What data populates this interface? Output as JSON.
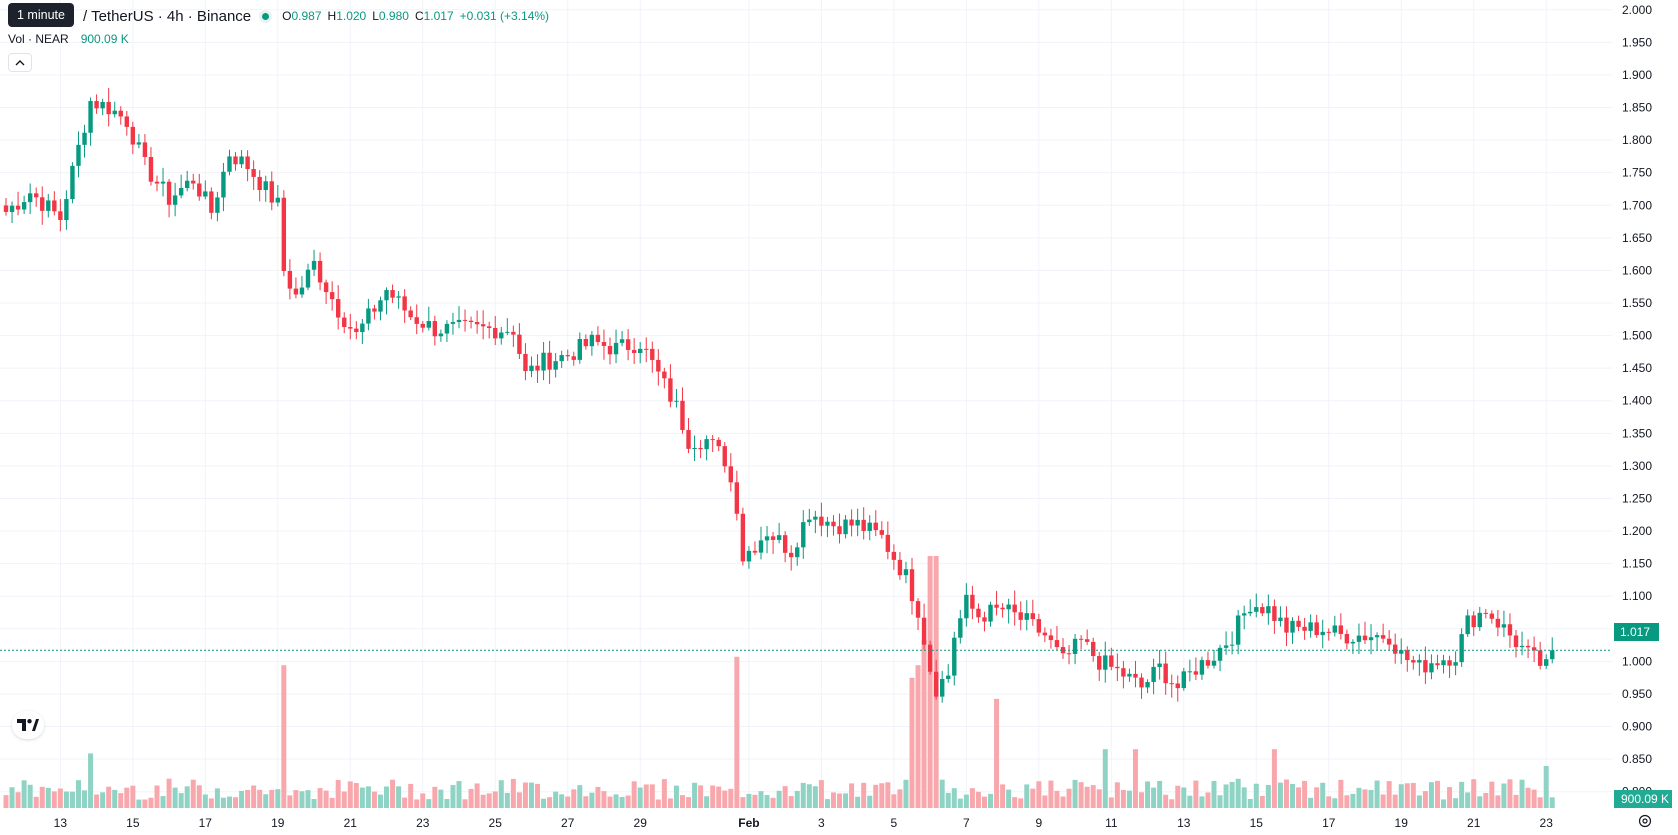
{
  "header": {
    "symbol": "/ TetherUS · 4h · Binance",
    "tooltip": "1 minute",
    "ohlc": {
      "o_label": "O",
      "o_value": "0.987",
      "h_label": "H",
      "h_value": "1.020",
      "l_label": "L",
      "l_value": "0.980",
      "c_label": "C",
      "c_value": "1.017",
      "change": "+0.031 (+3.14%)"
    },
    "volume_label": "Vol · NEAR",
    "volume_value": "900.09 K",
    "collapse_icon": "chevron-up-icon"
  },
  "price_tag": "1.017",
  "volume_tag": "900.09 K",
  "colors": {
    "up": "#089981",
    "down": "#F23645",
    "up_vol": "#8fd3c5",
    "down_vol": "#f8a8ad",
    "grid": "#f0f3fa"
  },
  "chart_data": {
    "type": "candlestick",
    "y_axis": {
      "ticks": [
        "2.000",
        "1.950",
        "1.900",
        "1.850",
        "1.800",
        "1.750",
        "1.700",
        "1.650",
        "1.600",
        "1.550",
        "1.500",
        "1.450",
        "1.400",
        "1.350",
        "1.300",
        "1.250",
        "1.200",
        "1.150",
        "1.100",
        "1.050",
        "1.000",
        "0.950",
        "0.900",
        "0.850",
        "0.800"
      ],
      "range": [
        0.775,
        2.015
      ],
      "side": "right"
    },
    "x_axis": {
      "ticks": [
        {
          "label": "13",
          "i": 9
        },
        {
          "label": "15",
          "i": 21
        },
        {
          "label": "17",
          "i": 33
        },
        {
          "label": "19",
          "i": 45
        },
        {
          "label": "21",
          "i": 57
        },
        {
          "label": "23",
          "i": 69
        },
        {
          "label": "25",
          "i": 81
        },
        {
          "label": "27",
          "i": 93
        },
        {
          "label": "29",
          "i": 105
        },
        {
          "label": "Feb",
          "i": 123,
          "bold": true
        },
        {
          "label": "3",
          "i": 135
        },
        {
          "label": "5",
          "i": 147
        },
        {
          "label": "7",
          "i": 159
        },
        {
          "label": "9",
          "i": 171
        },
        {
          "label": "11",
          "i": 183
        },
        {
          "label": "13",
          "i": 195
        },
        {
          "label": "15",
          "i": 207
        },
        {
          "label": "17",
          "i": 219
        },
        {
          "label": "19",
          "i": 231
        },
        {
          "label": "21",
          "i": 243
        },
        {
          "label": "23",
          "i": 255
        }
      ]
    },
    "grid": true,
    "last_price": 1.017,
    "keypoints": [
      [
        0,
        1.69
      ],
      [
        4,
        1.72
      ],
      [
        9,
        1.68
      ],
      [
        14,
        1.86
      ],
      [
        17,
        1.85
      ],
      [
        20,
        1.83
      ],
      [
        23,
        1.76
      ],
      [
        27,
        1.71
      ],
      [
        31,
        1.74
      ],
      [
        34,
        1.69
      ],
      [
        37,
        1.78
      ],
      [
        40,
        1.76
      ],
      [
        45,
        1.7
      ],
      [
        46,
        1.6
      ],
      [
        48,
        1.56
      ],
      [
        51,
        1.61
      ],
      [
        55,
        1.54
      ],
      [
        58,
        1.5
      ],
      [
        63,
        1.57
      ],
      [
        67,
        1.53
      ],
      [
        71,
        1.51
      ],
      [
        74,
        1.51
      ],
      [
        79,
        1.51
      ],
      [
        84,
        1.51
      ],
      [
        86,
        1.44
      ],
      [
        89,
        1.46
      ],
      [
        93,
        1.47
      ],
      [
        97,
        1.49
      ],
      [
        101,
        1.48
      ],
      [
        105,
        1.49
      ],
      [
        108,
        1.44
      ],
      [
        111,
        1.39
      ],
      [
        113,
        1.34
      ],
      [
        116,
        1.34
      ],
      [
        119,
        1.31
      ],
      [
        121,
        1.24
      ],
      [
        122,
        1.16
      ],
      [
        126,
        1.2
      ],
      [
        130,
        1.17
      ],
      [
        133,
        1.23
      ],
      [
        137,
        1.21
      ],
      [
        141,
        1.21
      ],
      [
        145,
        1.19
      ],
      [
        149,
        1.13
      ],
      [
        151,
        1.08
      ],
      [
        153,
        0.99
      ],
      [
        154,
        0.96
      ],
      [
        156,
        0.98
      ],
      [
        157,
        1.04
      ],
      [
        159,
        1.09
      ],
      [
        161,
        1.07
      ],
      [
        165,
        1.08
      ],
      [
        169,
        1.06
      ],
      [
        172,
        1.04
      ],
      [
        175,
        1.0
      ],
      [
        178,
        1.03
      ],
      [
        181,
        1.0
      ],
      [
        185,
        0.98
      ],
      [
        188,
        0.96
      ],
      [
        191,
        0.99
      ],
      [
        194,
        0.96
      ],
      [
        197,
        0.99
      ],
      [
        200,
        1.01
      ],
      [
        203,
        1.04
      ],
      [
        206,
        1.09
      ],
      [
        209,
        1.08
      ],
      [
        212,
        1.05
      ],
      [
        215,
        1.05
      ],
      [
        218,
        1.05
      ],
      [
        221,
        1.04
      ],
      [
        225,
        1.04
      ],
      [
        229,
        1.04
      ],
      [
        231,
        1.01
      ],
      [
        234,
        0.99
      ],
      [
        236,
        1.0
      ],
      [
        240,
        1.01
      ],
      [
        242,
        1.06
      ],
      [
        245,
        1.08
      ],
      [
        247,
        1.06
      ],
      [
        249,
        1.04
      ],
      [
        252,
        1.01
      ],
      [
        255,
        0.99
      ],
      [
        256,
        1.017
      ]
    ],
    "volume": {
      "scale_max": 1.0,
      "note": "relative bar heights",
      "spikes": [
        {
          "i": 14,
          "v": 0.13
        },
        {
          "i": 46,
          "v": 0.34
        },
        {
          "i": 121,
          "v": 0.36
        },
        {
          "i": 150,
          "v": 0.31
        },
        {
          "i": 151,
          "v": 0.34
        },
        {
          "i": 152,
          "v": 0.4
        },
        {
          "i": 153,
          "v": 0.6
        },
        {
          "i": 154,
          "v": 0.6
        },
        {
          "i": 164,
          "v": 0.26
        },
        {
          "i": 182,
          "v": 0.14
        },
        {
          "i": 187,
          "v": 0.14
        },
        {
          "i": 210,
          "v": 0.14
        },
        {
          "i": 255,
          "v": 0.1
        }
      ]
    }
  }
}
